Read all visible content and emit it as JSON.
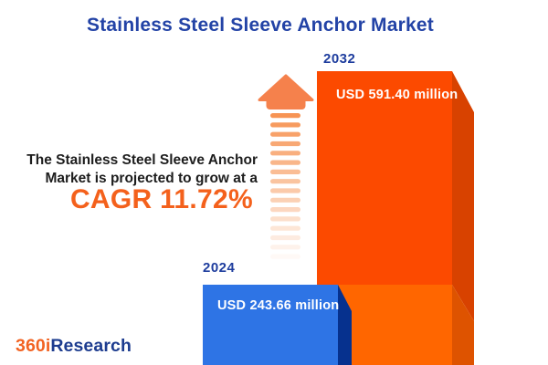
{
  "title": "Stainless Steel Sleeve Anchor Market",
  "annotation": {
    "line1": "The Stainless Steel Sleeve Anchor",
    "line2": "Market is projected to grow at a",
    "cagr_label": "CAGR 11.72%"
  },
  "logo": {
    "prefix": "360i",
    "suffix": "Research"
  },
  "colors": {
    "title_blue": "#2343A6",
    "year_label_blue": "#1E3D9E",
    "annotation_text": "#1D1D1D",
    "cagr_orange": "#F4611C",
    "value_text_white": "#FFFFFF",
    "bar_2024_front": "#2E74E5",
    "bar_2024_side": "#06318E",
    "bar_2032_front_top": "#FC4A00",
    "bar_2032_front_bottom": "#FF6600",
    "bar_2032_side_top": "#D84200",
    "bar_2032_side_bottom": "#DE5300",
    "arrow_orange": "#F5814C",
    "arrow_dash_orange": "#F68B45",
    "logo_orange": "#F26322",
    "logo_blue": "#1D3C8F"
  },
  "chart_data": {
    "type": "bar",
    "title": "Stainless Steel Sleeve Anchor Market",
    "categories": [
      "2024",
      "2032"
    ],
    "values": [
      243.66,
      591.4
    ],
    "unit": "USD million",
    "value_labels": [
      "USD 243.66 million",
      "USD 591.40 million"
    ],
    "cagr_percent": 11.72,
    "annotation": "The Stainless Steel Sleeve Anchor Market is projected to grow at a CAGR 11.72%",
    "legend": "none",
    "axes": "none",
    "style": "3d-infographic-bars-with-growth-arrow"
  }
}
